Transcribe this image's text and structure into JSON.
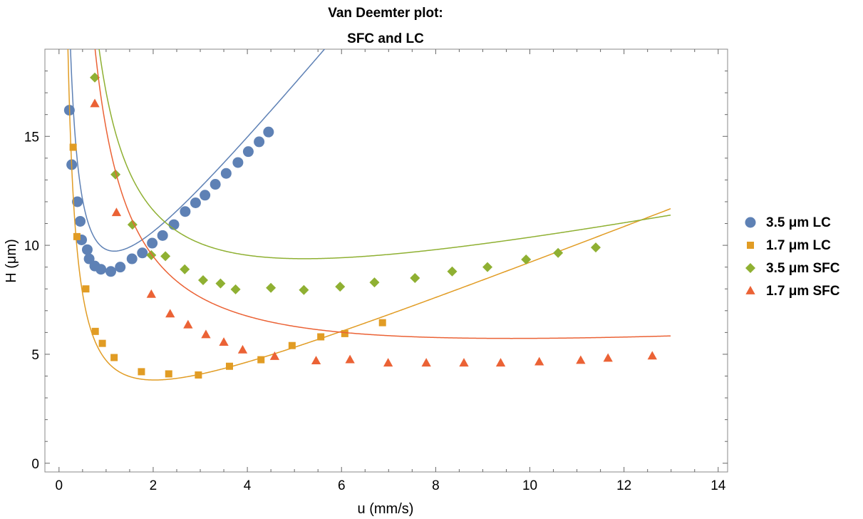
{
  "chart_data": {
    "type": "scatter",
    "title": "Van Deemter plot:",
    "subtitle": "SFC and LC",
    "xlabel": "u (mm/s)",
    "ylabel": "H (μm)",
    "xlim": [
      -0.3,
      14.2
    ],
    "ylim": [
      -0.4,
      19.0
    ],
    "xticks": [
      0,
      2,
      4,
      6,
      8,
      10,
      12,
      14
    ],
    "yticks": [
      0,
      5,
      10,
      15
    ],
    "grid": false,
    "legend_position": "right",
    "series": [
      {
        "name": "3.5 μm LC",
        "color": "#5e81b5",
        "marker": "circle",
        "fit": {
          "A": 3.59,
          "B": 3.6,
          "C": 2.62
        },
        "points": [
          [
            0.22,
            16.2
          ],
          [
            0.27,
            13.7
          ],
          [
            0.39,
            12.0
          ],
          [
            0.45,
            11.1
          ],
          [
            0.48,
            10.25
          ],
          [
            0.6,
            9.8
          ],
          [
            0.64,
            9.38
          ],
          [
            0.76,
            9.05
          ],
          [
            0.89,
            8.9
          ],
          [
            1.1,
            8.8
          ],
          [
            1.3,
            9.0
          ],
          [
            1.55,
            9.38
          ],
          [
            1.77,
            9.65
          ],
          [
            1.98,
            10.1
          ],
          [
            2.2,
            10.45
          ],
          [
            2.44,
            10.95
          ],
          [
            2.68,
            11.55
          ],
          [
            2.9,
            11.95
          ],
          [
            3.1,
            12.3
          ],
          [
            3.32,
            12.8
          ],
          [
            3.55,
            13.3
          ],
          [
            3.8,
            13.8
          ],
          [
            4.02,
            14.3
          ],
          [
            4.25,
            14.75
          ],
          [
            4.45,
            15.2
          ]
        ]
      },
      {
        "name": "1.7 μm LC",
        "color": "#e19c24",
        "marker": "square",
        "fit": {
          "A": 0.37,
          "B": 3.5,
          "C": 0.85
        },
        "points": [
          [
            0.3,
            14.5
          ],
          [
            0.38,
            10.4
          ],
          [
            0.57,
            8.0
          ],
          [
            0.77,
            6.05
          ],
          [
            0.92,
            5.5
          ],
          [
            1.17,
            4.85
          ],
          [
            1.75,
            4.2
          ],
          [
            2.33,
            4.1
          ],
          [
            2.96,
            4.05
          ],
          [
            3.62,
            4.45
          ],
          [
            4.29,
            4.75
          ],
          [
            4.95,
            5.4
          ],
          [
            5.56,
            5.8
          ],
          [
            6.07,
            5.95
          ],
          [
            6.87,
            6.45
          ]
        ]
      },
      {
        "name": "3.5 μm SFC",
        "color": "#8fb032",
        "marker": "diamond",
        "fit": {
          "A": 4.9,
          "B": 11.7,
          "C": 0.43
        },
        "points": [
          [
            0.76,
            17.7
          ],
          [
            1.2,
            13.25
          ],
          [
            1.56,
            10.95
          ],
          [
            1.96,
            9.55
          ],
          [
            2.26,
            9.5
          ],
          [
            2.67,
            8.9
          ],
          [
            3.06,
            8.4
          ],
          [
            3.43,
            8.25
          ],
          [
            3.75,
            7.98
          ],
          [
            4.5,
            8.05
          ],
          [
            5.2,
            7.95
          ],
          [
            5.97,
            8.1
          ],
          [
            6.7,
            8.3
          ],
          [
            7.56,
            8.5
          ],
          [
            8.35,
            8.8
          ],
          [
            9.1,
            9.0
          ],
          [
            9.92,
            9.35
          ],
          [
            10.6,
            9.65
          ],
          [
            11.4,
            9.9
          ]
        ]
      },
      {
        "name": "1.7 μm SFC",
        "color": "#eb6235",
        "marker": "triangle",
        "fit": {
          "A": 3.23,
          "B": 12.0,
          "C": 0.13
        },
        "points": [
          [
            0.76,
            16.5
          ],
          [
            1.22,
            11.5
          ],
          [
            1.96,
            7.75
          ],
          [
            2.36,
            6.85
          ],
          [
            2.74,
            6.35
          ],
          [
            3.12,
            5.9
          ],
          [
            3.5,
            5.55
          ],
          [
            3.9,
            5.2
          ],
          [
            4.58,
            4.9
          ],
          [
            5.46,
            4.7
          ],
          [
            6.18,
            4.75
          ],
          [
            6.99,
            4.6
          ],
          [
            7.8,
            4.6
          ],
          [
            8.6,
            4.6
          ],
          [
            9.38,
            4.6
          ],
          [
            10.2,
            4.65
          ],
          [
            11.08,
            4.72
          ],
          [
            11.66,
            4.82
          ],
          [
            12.6,
            4.92
          ]
        ]
      }
    ]
  }
}
